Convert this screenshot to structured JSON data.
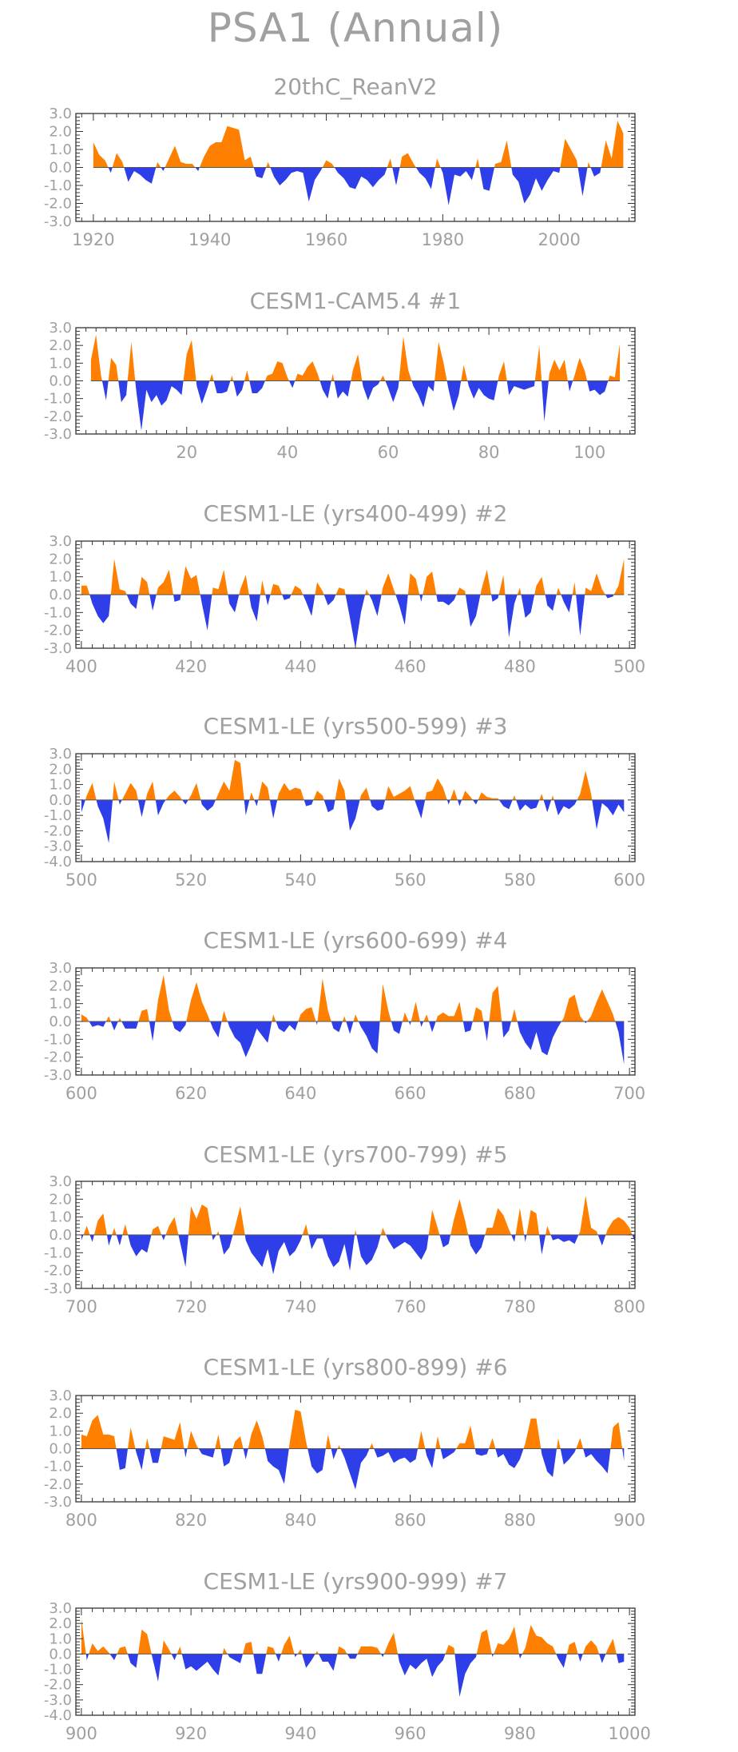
{
  "title": "PSA1 (Annual)",
  "colors": {
    "positive": "#ff8000",
    "negative": "#2e3ee8",
    "text": "#a0a0a0",
    "axis": "#333333"
  },
  "chart_data": [
    {
      "type": "area",
      "title": "20thC_ReanV2",
      "x_start": 1920,
      "x_end": 2011,
      "xlim": [
        1917,
        2013
      ],
      "ylim": [
        -3.0,
        3.0
      ],
      "xticks": [
        1920,
        1940,
        1960,
        1980,
        2000
      ],
      "yticks": [
        3.0,
        2.0,
        1.0,
        0.0,
        -1.0,
        -2.0,
        -3.0
      ],
      "values": [
        1.4,
        0.7,
        0.4,
        -0.3,
        0.8,
        0.3,
        -0.8,
        -0.2,
        -0.4,
        -0.7,
        -0.9,
        0.3,
        -0.2,
        0.5,
        1.2,
        0.3,
        0.2,
        0.2,
        -0.2,
        0.6,
        1.2,
        1.4,
        1.4,
        2.3,
        2.2,
        2.1,
        0.4,
        0.6,
        -0.5,
        -0.6,
        0.3,
        -0.5,
        -1.0,
        -0.7,
        -0.3,
        -0.2,
        -0.3,
        -1.9,
        -0.7,
        -0.2,
        0.4,
        0.2,
        -0.3,
        -0.6,
        -1.1,
        -1.2,
        -0.5,
        -0.7,
        -1.1,
        -0.7,
        -0.4,
        0.5,
        -1.0,
        0.6,
        0.8,
        0.2,
        -0.3,
        -0.6,
        -1.2,
        0.5,
        -0.3,
        -2.1,
        -0.4,
        -0.5,
        -0.2,
        -0.7,
        0.5,
        -1.2,
        -1.3,
        0.2,
        0.3,
        1.5,
        -0.4,
        -0.8,
        -2.0,
        -1.5,
        -0.6,
        -1.3,
        -0.7,
        -0.2,
        -0.3,
        1.6,
        1.0,
        0.4,
        -1.6,
        0.3,
        -0.5,
        -0.3,
        1.5,
        0.5,
        2.6,
        1.9
      ]
    },
    {
      "type": "area",
      "title": "CESM1-CAM5.4          #1",
      "x_start": 1,
      "x_end": 106,
      "xlim": [
        -2,
        109
      ],
      "ylim": [
        -3.0,
        3.0
      ],
      "xticks": [
        20,
        40,
        60,
        80,
        100
      ],
      "yticks": [
        3.0,
        2.0,
        1.0,
        0.0,
        -1.0,
        -2.0,
        -3.0
      ],
      "values": [
        1.2,
        2.6,
        0.3,
        -1.1,
        1.3,
        0.9,
        -1.2,
        -0.8,
        2.2,
        -0.6,
        -2.8,
        -0.5,
        -1.2,
        -0.8,
        -1.4,
        -1.1,
        -0.3,
        -0.5,
        -0.8,
        1.5,
        2.3,
        -0.3,
        -1.3,
        -0.5,
        0.4,
        -0.7,
        -0.7,
        -0.6,
        0.3,
        -0.9,
        -0.5,
        0.6,
        -0.7,
        -0.7,
        -0.4,
        0.3,
        0.4,
        1.1,
        1.0,
        0.2,
        -0.4,
        0.4,
        0.3,
        0.8,
        1.1,
        0.4,
        -0.5,
        -1.0,
        0.4,
        -1.0,
        -0.6,
        -0.9,
        0.6,
        1.5,
        -0.3,
        -1.1,
        -0.4,
        -0.2,
        0.3,
        -0.4,
        -1.2,
        -0.4,
        2.5,
        0.6,
        -0.3,
        -0.8,
        -1.5,
        -0.3,
        -0.6,
        2.2,
        1.0,
        -0.5,
        -1.7,
        -0.8,
        0.9,
        -0.3,
        -1.0,
        -0.4,
        -0.8,
        -1.0,
        -1.1,
        0.3,
        1.1,
        -0.8,
        -0.3,
        -0.4,
        -0.5,
        -0.4,
        -0.3,
        2.0,
        -2.3,
        0.4,
        1.2,
        0.6,
        1.2,
        -0.6,
        0.3,
        1.3,
        0.6,
        -0.6,
        -0.5,
        -0.8,
        -0.6,
        0.3,
        0.2,
        2.1
      ]
    },
    {
      "type": "area",
      "title": "CESM1-LE (yrs400-499) #2",
      "x_start": 400,
      "x_end": 499,
      "xlim": [
        399,
        501
      ],
      "ylim": [
        -3.0,
        3.0
      ],
      "xticks": [
        400,
        420,
        440,
        460,
        480,
        500
      ],
      "yticks": [
        3.0,
        2.0,
        1.0,
        0.0,
        -1.0,
        -2.0,
        -3.0
      ],
      "values": [
        0.5,
        0.5,
        -0.5,
        -1.2,
        -1.6,
        -1.2,
        2.0,
        0.3,
        0.2,
        -0.5,
        -0.8,
        1.0,
        0.7,
        -0.9,
        0.4,
        0.7,
        1.4,
        -0.4,
        -0.3,
        1.6,
        0.9,
        1.1,
        -0.5,
        -2.0,
        0.4,
        0.3,
        1.4,
        -0.5,
        -1.0,
        0.3,
        1.1,
        -0.7,
        -1.5,
        0.8,
        -0.6,
        0.6,
        0.5,
        -0.3,
        -0.2,
        0.5,
        0.3,
        -0.4,
        -1.2,
        0.7,
        0.2,
        -0.6,
        -0.3,
        0.4,
        0.3,
        -1.3,
        -3.0,
        -1.0,
        0.3,
        -0.3,
        -1.2,
        0.4,
        1.2,
        0.3,
        -0.6,
        -1.7,
        1.2,
        0.9,
        -0.4,
        1.0,
        1.3,
        -0.4,
        -0.4,
        -0.6,
        -0.3,
        0.4,
        0.2,
        -1.8,
        -1.2,
        0.3,
        1.4,
        -0.4,
        -0.2,
        1.1,
        -2.4,
        -0.5,
        0.4,
        -1.3,
        -1.0,
        0.5,
        1.0,
        -0.6,
        -0.9,
        0.4,
        -0.4,
        -1.0,
        0.7,
        -2.3,
        0.4,
        0.2,
        1.2,
        0.3,
        -0.2,
        -0.1,
        0.5,
        2.0
      ]
    },
    {
      "type": "area",
      "title": "CESM1-LE (yrs500-599) #3",
      "x_start": 500,
      "x_end": 599,
      "xlim": [
        499,
        601
      ],
      "ylim": [
        -4.0,
        3.0
      ],
      "xticks": [
        500,
        520,
        540,
        560,
        580,
        600
      ],
      "yticks": [
        3.0,
        2.0,
        1.0,
        0.0,
        -1.0,
        -2.0,
        -3.0,
        -4.0
      ],
      "values": [
        -0.8,
        0.3,
        1.1,
        -0.4,
        -1.2,
        -2.8,
        1.2,
        -0.3,
        0.4,
        1.1,
        0.6,
        -1.1,
        0.4,
        1.2,
        -1.0,
        -0.2,
        0.3,
        0.6,
        0.2,
        -0.3,
        0.3,
        1.1,
        -0.3,
        -0.7,
        -0.4,
        0.4,
        1.2,
        0.6,
        2.6,
        2.4,
        -1.0,
        0.5,
        -0.4,
        1.2,
        0.8,
        -1.2,
        0.4,
        1.1,
        0.6,
        0.8,
        0.7,
        -0.4,
        -0.3,
        0.6,
        0.3,
        -0.8,
        -0.6,
        1.4,
        0.6,
        -2.0,
        -1.2,
        0.3,
        0.8,
        -0.4,
        -0.7,
        -0.6,
        0.9,
        0.2,
        0.4,
        0.6,
        0.9,
        -0.2,
        -1.2,
        0.5,
        0.6,
        1.4,
        0.8,
        -0.3,
        0.7,
        -0.4,
        0.6,
        0.2,
        -0.3,
        0.5,
        0.2,
        0.1,
        0.1,
        -0.4,
        -0.6,
        0.3,
        -0.7,
        -0.3,
        -0.6,
        -0.5,
        0.4,
        -0.8,
        0.3,
        -1.0,
        -0.4,
        -0.6,
        -0.3,
        0.4,
        1.9,
        0.4,
        -1.9,
        -0.2,
        -0.5,
        -1.0,
        -0.3,
        -0.8
      ]
    },
    {
      "type": "area",
      "title": "CESM1-LE (yrs600-699) #4",
      "x_start": 600,
      "x_end": 699,
      "xlim": [
        599,
        701
      ],
      "ylim": [
        -3.0,
        3.0
      ],
      "xticks": [
        600,
        620,
        640,
        660,
        680,
        700
      ],
      "yticks": [
        3.0,
        2.0,
        1.0,
        0.0,
        -1.0,
        -2.0,
        -3.0
      ],
      "values": [
        0.4,
        0.2,
        -0.3,
        -0.2,
        -0.3,
        0.3,
        -0.5,
        0.2,
        -0.4,
        -0.4,
        -0.4,
        0.6,
        0.7,
        -1.1,
        1.2,
        2.6,
        0.6,
        -0.4,
        -0.6,
        -0.2,
        1.2,
        2.2,
        1.1,
        0.4,
        -0.4,
        -0.9,
        0.6,
        -0.3,
        -0.9,
        -1.2,
        -2.0,
        -1.3,
        -0.4,
        -0.8,
        -1.2,
        0.4,
        -0.4,
        -0.6,
        -0.2,
        -0.5,
        0.4,
        0.7,
        0.8,
        -0.2,
        2.4,
        0.6,
        -0.4,
        -0.6,
        0.3,
        -0.7,
        0.4,
        -0.3,
        -0.8,
        -1.5,
        -1.8,
        2.1,
        0.6,
        -0.5,
        -0.7,
        0.5,
        -0.2,
        1.1,
        -0.3,
        0.4,
        -0.6,
        0.3,
        0.5,
        0.3,
        0.3,
        1.1,
        -0.6,
        -0.5,
        0.8,
        0.6,
        -1.1,
        1.6,
        2.0,
        -0.9,
        -0.5,
        0.7,
        -0.6,
        -1.2,
        -1.6,
        -0.6,
        -1.7,
        -1.9,
        -0.9,
        -0.3,
        0.2,
        1.3,
        1.5,
        0.3,
        -0.1,
        0.3,
        1.1,
        1.8,
        1.1,
        0.4,
        -0.6,
        -2.4
      ]
    },
    {
      "type": "area",
      "title": "CESM1-LE (yrs700-799) #5",
      "x_start": 700,
      "x_end": 799,
      "xlim": [
        699,
        801
      ],
      "ylim": [
        -3.0,
        3.0
      ],
      "xticks": [
        700,
        720,
        740,
        760,
        780,
        800
      ],
      "yticks": [
        3.0,
        2.0,
        1.0,
        0.0,
        -1.0,
        -2.0,
        -3.0
      ],
      "values": [
        -0.3,
        0.5,
        -0.4,
        0.8,
        1.2,
        -0.6,
        0.4,
        -0.6,
        0.6,
        -0.6,
        -1.2,
        -0.8,
        -1.0,
        0.3,
        0.5,
        -0.3,
        0.5,
        1.0,
        -0.4,
        -1.8,
        1.6,
        0.9,
        1.7,
        1.5,
        -0.3,
        0.2,
        -1.1,
        -0.7,
        0.4,
        1.6,
        -0.3,
        -1.0,
        -1.4,
        -1.8,
        -0.8,
        -2.2,
        -0.9,
        -0.4,
        -1.2,
        -0.9,
        -0.3,
        0.6,
        -0.8,
        -0.2,
        -0.2,
        -1.2,
        -1.8,
        -1.5,
        -0.5,
        -2.0,
        0.3,
        -1.2,
        -1.7,
        -1.4,
        -0.7,
        0.4,
        -0.3,
        -0.8,
        -0.6,
        -0.4,
        -0.6,
        -1.0,
        -1.4,
        -0.8,
        1.4,
        0.4,
        -0.7,
        -0.5,
        0.9,
        2.0,
        0.8,
        -0.6,
        -1.1,
        -0.7,
        0.4,
        0.4,
        1.5,
        1.1,
        0.3,
        -0.4,
        1.5,
        -0.4,
        1.4,
        1.2,
        -1.1,
        0.5,
        -0.3,
        -0.2,
        -0.4,
        -0.3,
        -0.5,
        0.2,
        2.2,
        0.4,
        0.2,
        -0.6,
        0.3,
        0.8,
        1.0,
        0.8,
        0.4,
        -0.4
      ]
    },
    {
      "type": "area",
      "title": "CESM1-LE (yrs800-899) #6",
      "x_start": 800,
      "x_end": 899,
      "xlim": [
        799,
        901
      ],
      "ylim": [
        -3.0,
        3.0
      ],
      "xticks": [
        800,
        820,
        840,
        860,
        880,
        900
      ],
      "yticks": [
        3.0,
        2.0,
        1.0,
        0.0,
        -1.0,
        -2.0,
        -3.0
      ],
      "values": [
        0.8,
        0.7,
        1.6,
        1.9,
        0.8,
        0.8,
        0.7,
        -1.2,
        -1.1,
        1.2,
        -0.2,
        -1.2,
        0.6,
        -0.8,
        -0.8,
        0.7,
        0.6,
        0.5,
        1.5,
        -0.5,
        1.0,
        0.2,
        -0.3,
        -0.4,
        -0.5,
        0.8,
        -1.0,
        -0.8,
        0.4,
        0.7,
        -0.6,
        0.8,
        1.6,
        0.7,
        -0.7,
        -1.0,
        -1.2,
        -2.0,
        0.3,
        2.2,
        2.1,
        0.4,
        -1.0,
        -1.4,
        -1.2,
        0.8,
        -0.6,
        0.2,
        -0.5,
        -1.4,
        -2.3,
        -0.8,
        -0.4,
        0.3,
        -0.5,
        -0.4,
        -0.2,
        -0.8,
        -0.6,
        -0.5,
        -0.8,
        -0.6,
        1.0,
        -0.4,
        -1.1,
        0.7,
        -0.6,
        -0.4,
        -0.2,
        0.3,
        0.3,
        1.3,
        -0.3,
        -0.4,
        -0.3,
        0.6,
        -0.5,
        -0.3,
        -0.9,
        -1.1,
        -0.6,
        0.3,
        1.7,
        1.7,
        -0.3,
        -1.3,
        -1.6,
        0.6,
        -0.9,
        -0.6,
        -0.2,
        0.6,
        -0.5,
        -0.3,
        -0.7,
        -1.0,
        -1.4,
        1.2,
        1.5,
        -0.7
      ]
    },
    {
      "type": "area",
      "title": "CESM1-LE (yrs900-999) #7",
      "x_start": 900,
      "x_end": 999,
      "xlim": [
        899,
        1001
      ],
      "ylim": [
        -4.0,
        3.0
      ],
      "xticks": [
        900,
        920,
        940,
        960,
        980,
        1000
      ],
      "yticks": [
        3.0,
        2.0,
        1.0,
        0.0,
        -1.0,
        -2.0,
        -3.0,
        -4.0
      ],
      "values": [
        2.3,
        -0.4,
        0.7,
        0.2,
        0.5,
        0.1,
        -0.4,
        0.4,
        0.5,
        -0.6,
        -0.9,
        1.6,
        1.3,
        -0.3,
        -1.8,
        0.9,
        0.3,
        -0.4,
        0.5,
        -1.0,
        -0.8,
        -1.1,
        -0.8,
        -0.5,
        -1.0,
        -1.4,
        0.4,
        -0.2,
        -0.4,
        -0.6,
        0.7,
        0.8,
        -1.3,
        -1.3,
        0.5,
        0.4,
        -0.5,
        0.6,
        1.2,
        -0.2,
        0.3,
        -0.9,
        -0.4,
        0.2,
        -0.5,
        -0.5,
        -1.1,
        0.5,
        0.3,
        -0.3,
        -0.3,
        0.5,
        0.5,
        0.5,
        0.4,
        -0.2,
        0.7,
        1.4,
        -0.5,
        -1.4,
        -0.7,
        -1.0,
        -0.6,
        -0.3,
        -1.5,
        -0.8,
        -0.4,
        0.6,
        0.4,
        -2.8,
        -1.3,
        -0.6,
        -0.2,
        1.4,
        1.6,
        -0.2,
        0.7,
        0.6,
        1.0,
        1.8,
        -0.3,
        0.4,
        1.9,
        1.2,
        1.1,
        0.7,
        0.5,
        -0.3,
        -0.9,
        0.6,
        0.8,
        -0.5,
        0.5,
        0.9,
        0.5,
        -0.6,
        0.3,
        1.0,
        -0.6,
        -0.5
      ]
    }
  ]
}
